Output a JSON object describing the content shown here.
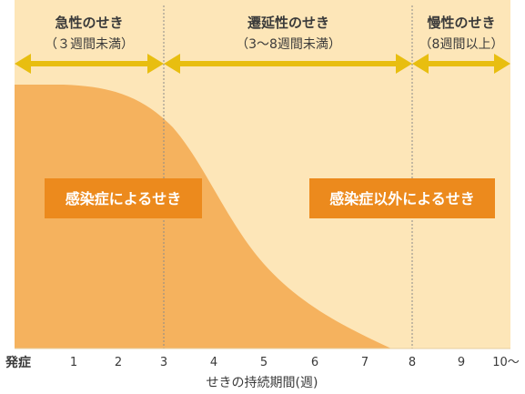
{
  "phases": [
    {
      "title": "急性のせき",
      "subtitle": "（３週間未満）"
    },
    {
      "title": "遷延性のせき",
      "subtitle": "（3〜8週間未満）"
    },
    {
      "title": "慢性のせき",
      "subtitle": "（8週間以上）"
    }
  ],
  "causes": {
    "infection": "感染症によるせき",
    "non_infection": "感染症以外によるせき"
  },
  "axis": {
    "start_label": "発症",
    "ticks": [
      "1",
      "2",
      "3",
      "4",
      "5",
      "6",
      "7",
      "8",
      "9",
      "10〜"
    ],
    "xlabel": "せきの持続期間(週)"
  },
  "colors": {
    "background": "#fde6b8",
    "curve_fill": "#f5b25e",
    "arrow": "#e8be10",
    "cause_box": "#ec8a1d",
    "divider": "#8a8a8a"
  }
}
